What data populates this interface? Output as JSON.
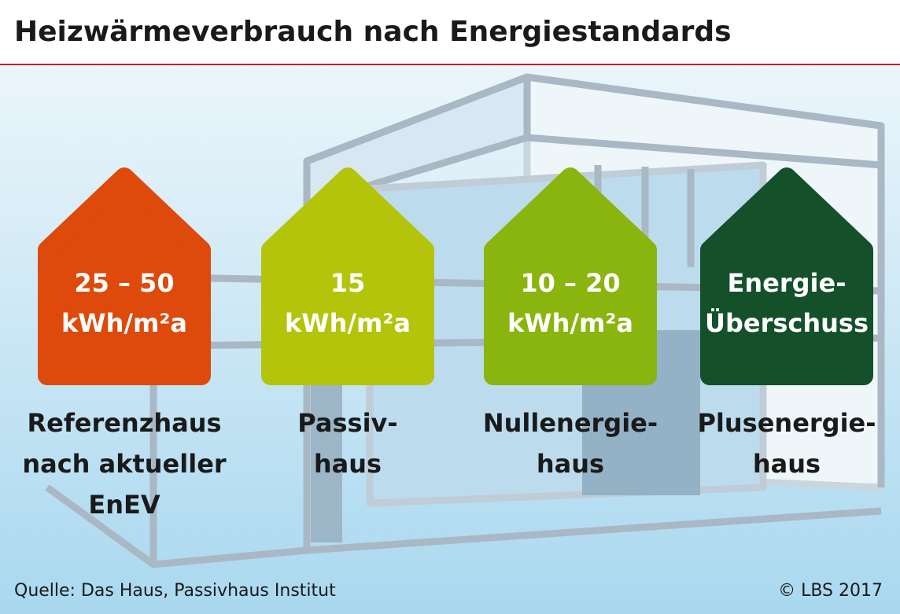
{
  "header": {
    "title": "Heizwärmeverbrauch nach Energiestandards"
  },
  "houses": [
    {
      "value": [
        "25 – 50",
        "kWh/m²a"
      ],
      "label": [
        "Referenzhaus",
        "nach aktueller",
        "EnEV"
      ],
      "color": "#de4a0c"
    },
    {
      "value": [
        "15",
        "kWh/m²a"
      ],
      "label": [
        "Passiv-",
        "haus"
      ],
      "color": "#b3c40a"
    },
    {
      "value": [
        "10 – 20",
        "kWh/m²a"
      ],
      "label": [
        "Nullenergie-",
        "haus"
      ],
      "color": "#8ab40e"
    },
    {
      "value": [
        "Energie-",
        "Überschuss"
      ],
      "label": [
        "Plusenergie-",
        "haus"
      ],
      "color": "#14502a"
    }
  ],
  "footer": {
    "source": "Quelle: Das Haus, Passivhaus Institut",
    "copyright": "© LBS 2017"
  }
}
